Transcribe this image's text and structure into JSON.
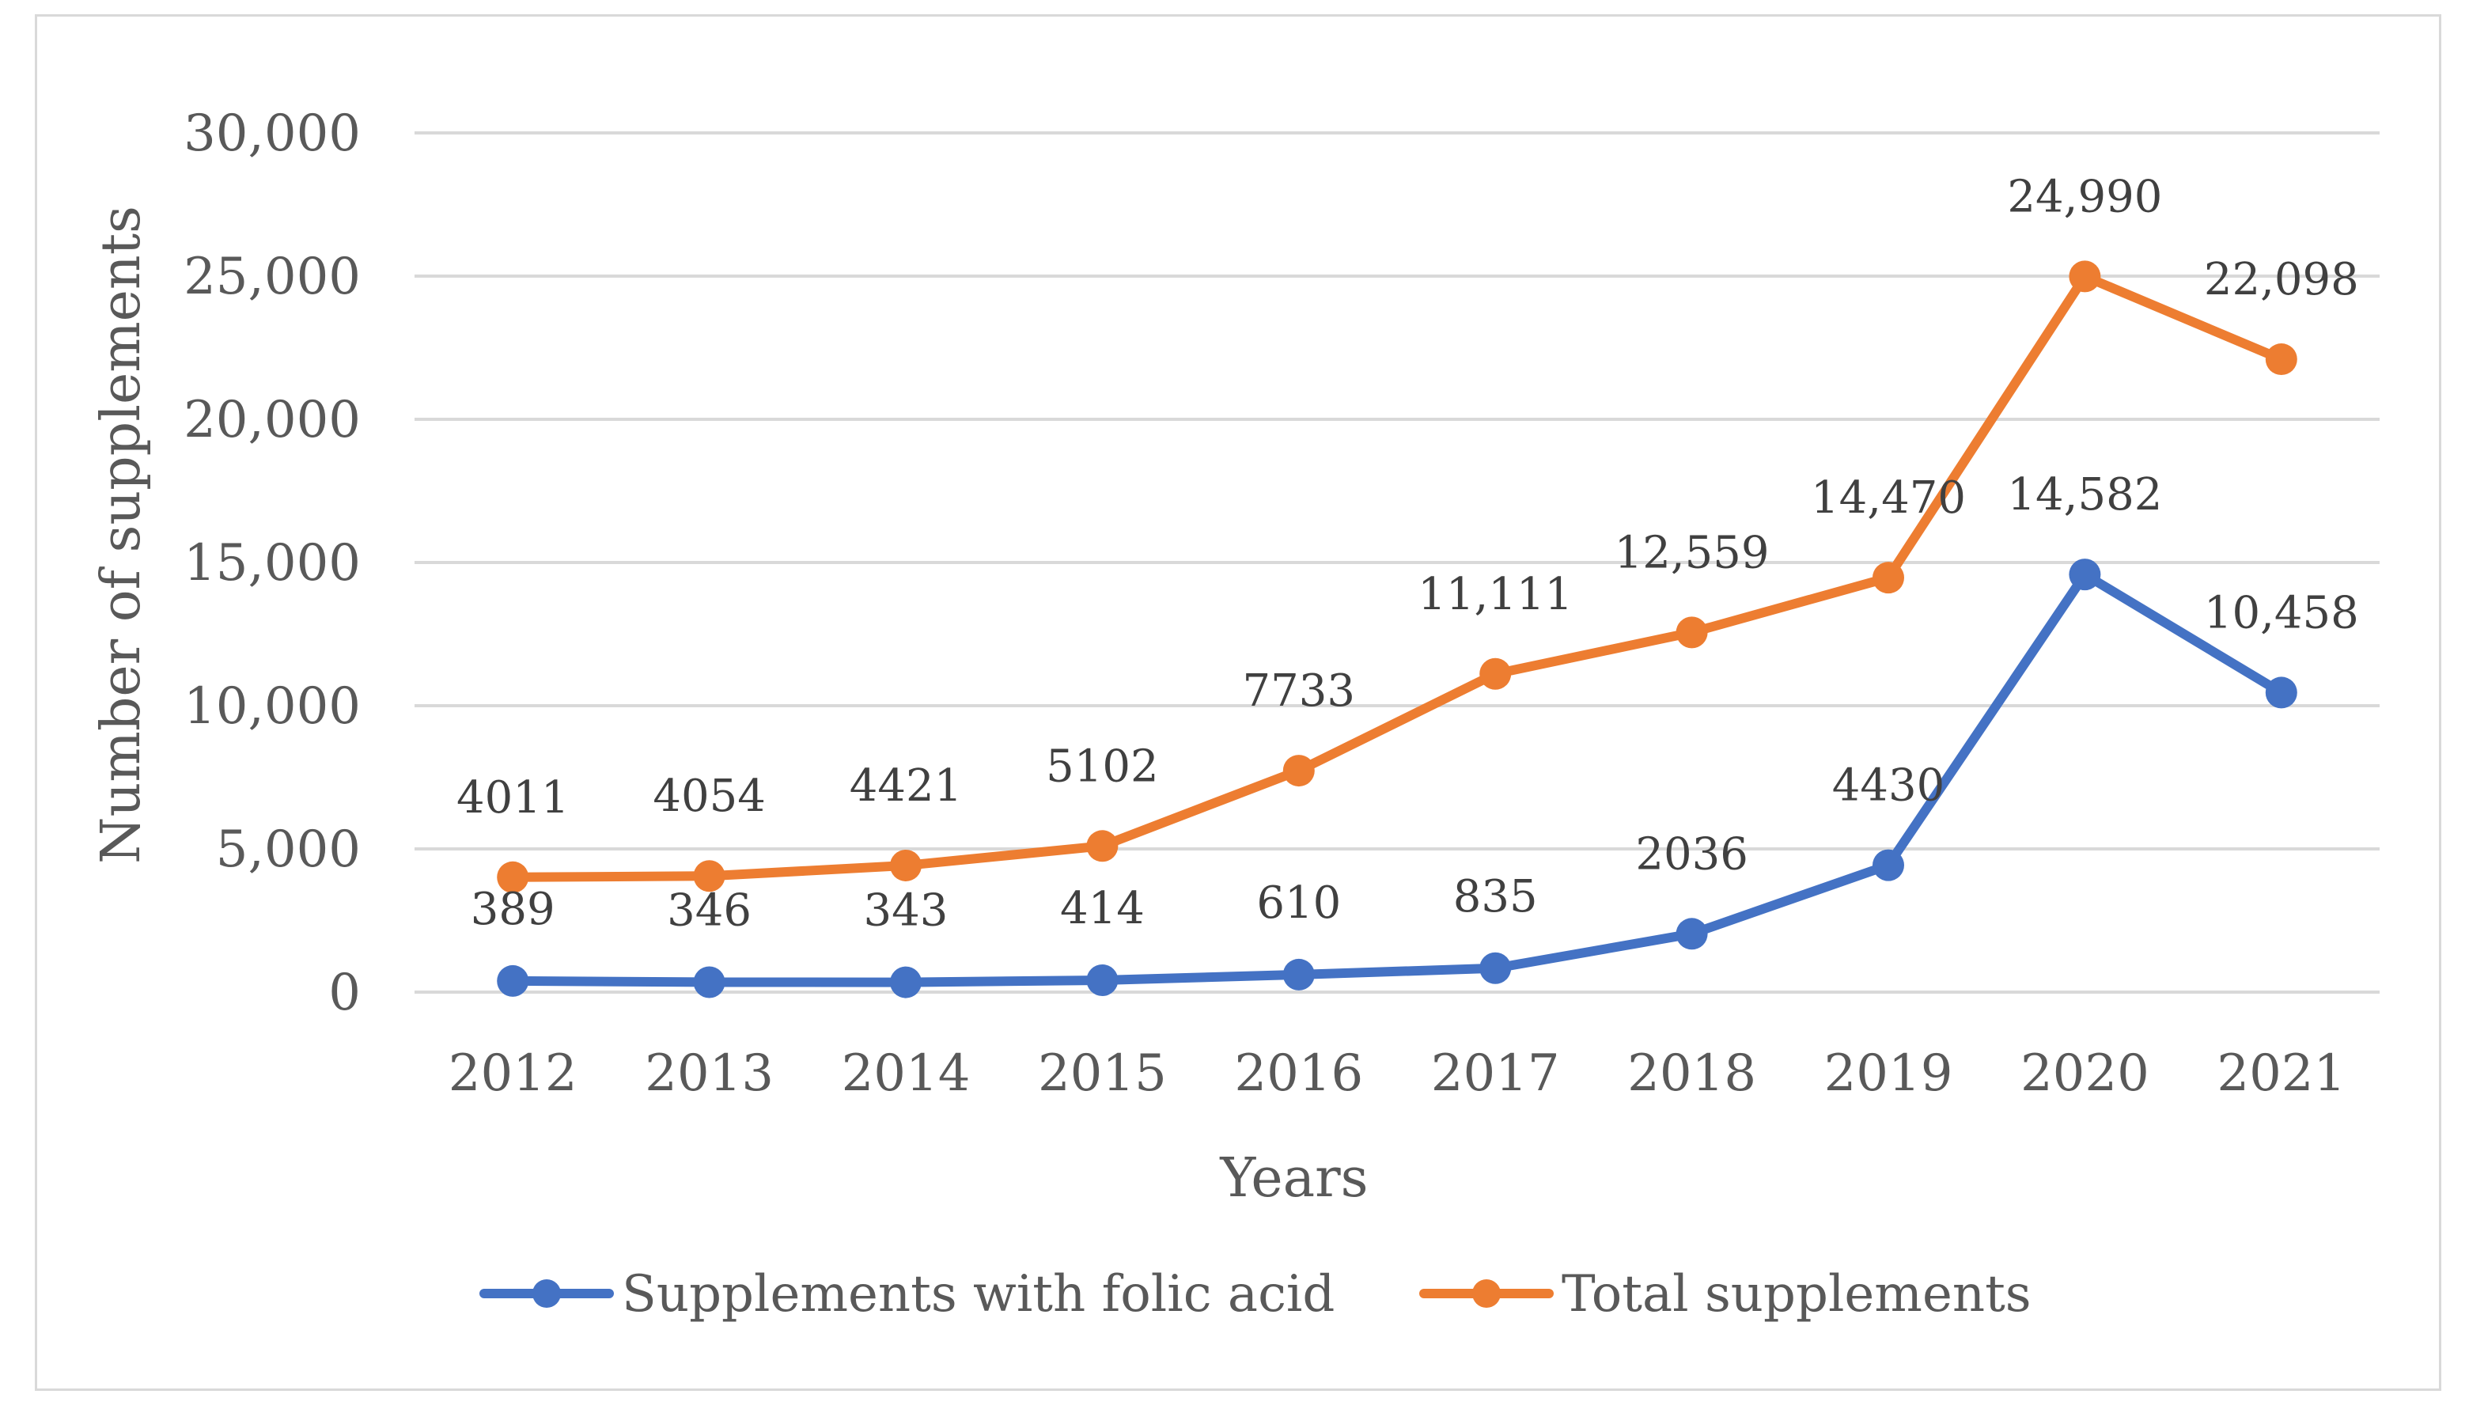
{
  "chart_data": {
    "type": "line",
    "title": "",
    "xlabel": "Years",
    "ylabel": "Number of supplements",
    "ylim": [
      0,
      30000
    ],
    "yticks": [
      0,
      5000,
      10000,
      15000,
      20000,
      25000,
      30000
    ],
    "ytick_labels": [
      "0",
      "5,000",
      "10,000",
      "15,000",
      "20,000",
      "25,000",
      "30,000"
    ],
    "grid": true,
    "legend": "bottom",
    "categories": [
      "2012",
      "2013",
      "2014",
      "2015",
      "2016",
      "2017",
      "2018",
      "2019",
      "2020",
      "2021"
    ],
    "series": [
      {
        "name": "Supplements with folic acid",
        "color": "#4472c4",
        "values": [
          389,
          346,
          343,
          414,
          610,
          835,
          2036,
          4430,
          14582,
          10458
        ],
        "labels": [
          "389",
          "346",
          "343",
          "414",
          "610",
          "835",
          "2036",
          "4430",
          "14,582",
          "10,458"
        ]
      },
      {
        "name": "Total supplements",
        "color": "#ed7d31",
        "values": [
          4011,
          4054,
          4421,
          5102,
          7733,
          11111,
          12559,
          14470,
          24990,
          22098
        ],
        "labels": [
          "4011",
          "4054",
          "4421",
          "5102",
          "7733",
          "11,111",
          "12,559",
          "14,470",
          "24,990",
          "22,098"
        ]
      }
    ]
  }
}
